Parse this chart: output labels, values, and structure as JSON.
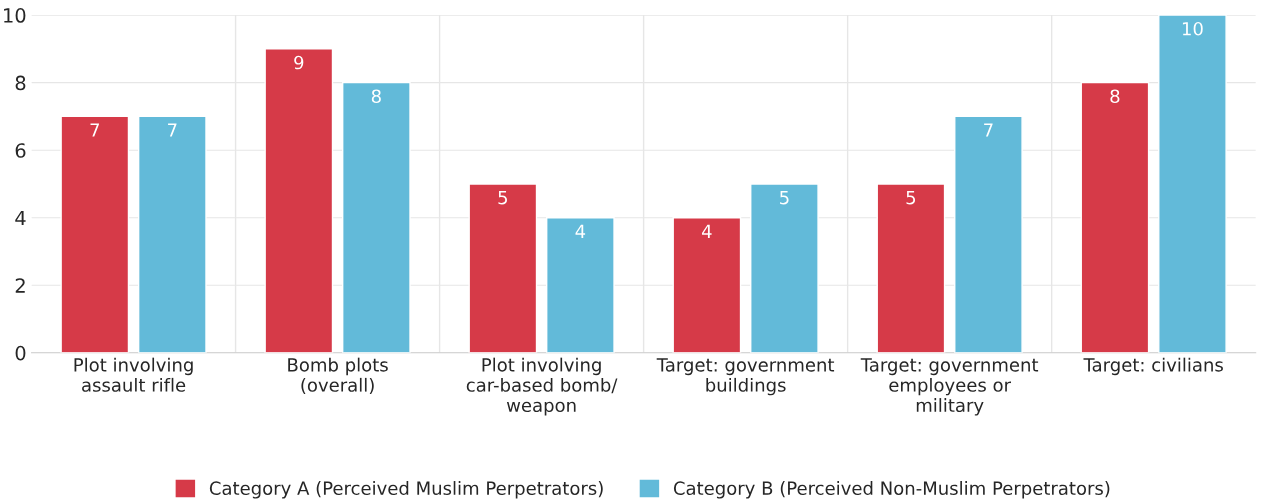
{
  "chart_data": {
    "type": "bar",
    "categories": [
      "Plot involving assault rifle",
      "Bomb plots (overall)",
      "Plot involving car-based bomb/weapon",
      "Target: government buildings",
      "Target: government employees or military",
      "Target: civilians"
    ],
    "series": [
      {
        "name": "Category A (Perceived Muslim Perpetrators)",
        "color": "#d63a48",
        "values": [
          7,
          9,
          5,
          4,
          5,
          8
        ]
      },
      {
        "name": "Category B (Perceived Non-Muslim Perpetrators)",
        "color": "#62bad9",
        "values": [
          7,
          8,
          4,
          5,
          7,
          10
        ]
      }
    ],
    "ylim": [
      0,
      10
    ],
    "yticks": [
      0,
      2,
      4,
      6,
      8,
      10
    ],
    "grid": true,
    "legend": "bottom",
    "data_labels": true
  }
}
